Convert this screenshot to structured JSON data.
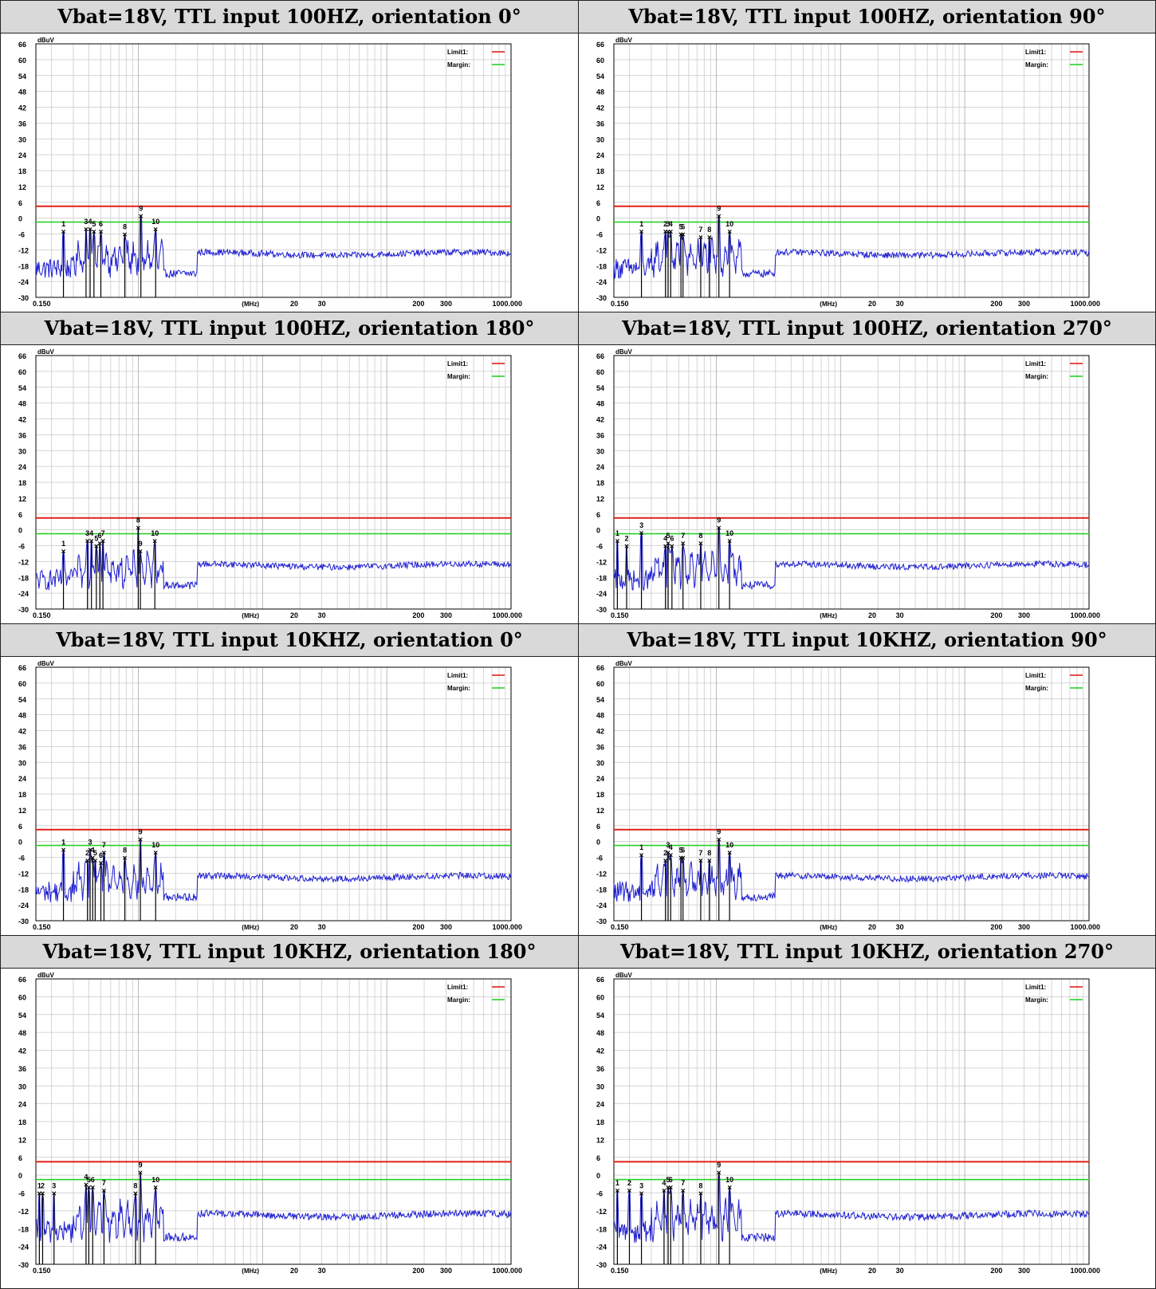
{
  "chart_data": [
    {
      "type": "line",
      "title": "Vbat=18V, TTL input 100HZ, orientation 0°",
      "ylabel": "dBuV",
      "xunit": "(MHz)",
      "xscale": "log",
      "xlim": [
        0.15,
        1000
      ],
      "ylim": [
        -30,
        66
      ],
      "yticks": [
        66,
        60,
        54,
        48,
        42,
        36,
        30,
        24,
        18,
        12,
        6,
        0,
        -6,
        -12,
        -18,
        -24,
        -30
      ],
      "xticklabels": [
        "0.150",
        "20",
        "30",
        "200",
        "300",
        "1000.000"
      ],
      "legend": [
        {
          "name": "Limit1:",
          "color": "#e0201b"
        },
        {
          "name": "Margin:",
          "color": "#2ad12a"
        }
      ],
      "limit1": 4.5,
      "margin": -1.5,
      "trace_color": "#1f1fd0",
      "markers": [
        {
          "id": "1",
          "x": 0.25,
          "y": -5
        },
        {
          "id": "3",
          "x": 0.38,
          "y": -4
        },
        {
          "id": "4",
          "x": 0.41,
          "y": -4
        },
        {
          "id": "5",
          "x": 0.44,
          "y": -5
        },
        {
          "id": "6",
          "x": 0.5,
          "y": -5
        },
        {
          "id": "8",
          "x": 0.78,
          "y": -6
        },
        {
          "id": "9",
          "x": 1.05,
          "y": 1
        },
        {
          "id": "10",
          "x": 1.38,
          "y": -4
        }
      ]
    },
    {
      "type": "line",
      "title": "Vbat=18V, TTL input 100HZ, orientation 90°",
      "ylabel": "dBuV",
      "xunit": "(MHz)",
      "xscale": "log",
      "xlim": [
        0.15,
        1000
      ],
      "ylim": [
        -30,
        66
      ],
      "yticks": [
        66,
        60,
        54,
        48,
        42,
        36,
        30,
        24,
        18,
        12,
        6,
        0,
        -6,
        -12,
        -18,
        -24,
        -30
      ],
      "xticklabels": [
        "0.150",
        "20",
        "30",
        "200",
        "300",
        "1000.000"
      ],
      "legend": [
        {
          "name": "Limit1:",
          "color": "#e0201b"
        },
        {
          "name": "Margin:",
          "color": "#2ad12a"
        }
      ],
      "limit1": 4.5,
      "margin": -1.5,
      "trace_color": "#1f1fd0",
      "markers": [
        {
          "id": "1",
          "x": 0.25,
          "y": -5
        },
        {
          "id": "2",
          "x": 0.39,
          "y": -5
        },
        {
          "id": "3",
          "x": 0.41,
          "y": -5
        },
        {
          "id": "4",
          "x": 0.43,
          "y": -5
        },
        {
          "id": "5",
          "x": 0.52,
          "y": -6
        },
        {
          "id": "6",
          "x": 0.54,
          "y": -6
        },
        {
          "id": "7",
          "x": 0.75,
          "y": -7
        },
        {
          "id": "8",
          "x": 0.88,
          "y": -7
        },
        {
          "id": "9",
          "x": 1.05,
          "y": 1
        },
        {
          "id": "10",
          "x": 1.28,
          "y": -5
        }
      ]
    },
    {
      "type": "line",
      "title": "Vbat=18V, TTL input 100HZ, orientation 180°",
      "ylabel": "dBuV",
      "xunit": "(MHz)",
      "xscale": "log",
      "xlim": [
        0.15,
        1000
      ],
      "ylim": [
        -30,
        66
      ],
      "yticks": [
        66,
        60,
        54,
        48,
        42,
        36,
        30,
        24,
        18,
        12,
        6,
        0,
        -6,
        -12,
        -18,
        -24,
        -30
      ],
      "xticklabels": [
        "0.150",
        "20",
        "30",
        "200",
        "300",
        "1000.000"
      ],
      "legend": [
        {
          "name": "Limit1:",
          "color": "#e0201b"
        },
        {
          "name": "Margin:",
          "color": "#2ad12a"
        }
      ],
      "limit1": 4.5,
      "margin": -1.5,
      "trace_color": "#1f1fd0",
      "markers": [
        {
          "id": "1",
          "x": 0.25,
          "y": -8
        },
        {
          "id": "3",
          "x": 0.39,
          "y": -4
        },
        {
          "id": "4",
          "x": 0.42,
          "y": -4
        },
        {
          "id": "5",
          "x": 0.46,
          "y": -6
        },
        {
          "id": "6",
          "x": 0.49,
          "y": -5
        },
        {
          "id": "7",
          "x": 0.52,
          "y": -4
        },
        {
          "id": "8",
          "x": 1.0,
          "y": 1
        },
        {
          "id": "9",
          "x": 1.04,
          "y": -8
        },
        {
          "id": "10",
          "x": 1.36,
          "y": -4
        }
      ]
    },
    {
      "type": "line",
      "title": "Vbat=18V, TTL input 100HZ, orientation 270°",
      "ylabel": "dBuV",
      "xunit": "(MHz)",
      "xscale": "log",
      "xlim": [
        0.15,
        1000
      ],
      "ylim": [
        -30,
        66
      ],
      "yticks": [
        66,
        60,
        54,
        48,
        42,
        36,
        30,
        24,
        18,
        12,
        6,
        0,
        -6,
        -12,
        -18,
        -24,
        -30
      ],
      "xticklabels": [
        "0.150",
        "20",
        "30",
        "200",
        "300",
        "1000.000"
      ],
      "legend": [
        {
          "name": "Limit1:",
          "color": "#e0201b"
        },
        {
          "name": "Margin:",
          "color": "#2ad12a"
        }
      ],
      "limit1": 4.5,
      "margin": -1.5,
      "trace_color": "#1f1fd0",
      "markers": [
        {
          "id": "1",
          "x": 0.16,
          "y": -4
        },
        {
          "id": "2",
          "x": 0.19,
          "y": -6
        },
        {
          "id": "3",
          "x": 0.25,
          "y": -1
        },
        {
          "id": "4",
          "x": 0.39,
          "y": -6
        },
        {
          "id": "5",
          "x": 0.41,
          "y": -5
        },
        {
          "id": "6",
          "x": 0.44,
          "y": -6
        },
        {
          "id": "7",
          "x": 0.54,
          "y": -5
        },
        {
          "id": "8",
          "x": 0.75,
          "y": -5
        },
        {
          "id": "9",
          "x": 1.05,
          "y": 1
        },
        {
          "id": "10",
          "x": 1.28,
          "y": -4
        }
      ]
    },
    {
      "type": "line",
      "title": "Vbat=18V, TTL input 10KHZ, orientation 0°",
      "ylabel": "dBuV",
      "xunit": "(MHz)",
      "xscale": "log",
      "xlim": [
        0.15,
        1000
      ],
      "ylim": [
        -30,
        66
      ],
      "yticks": [
        66,
        60,
        54,
        48,
        42,
        36,
        30,
        24,
        18,
        12,
        6,
        0,
        -6,
        -12,
        -18,
        -24,
        -30
      ],
      "xticklabels": [
        "0.150",
        "20",
        "30",
        "200",
        "300",
        "1000.000"
      ],
      "legend": [
        {
          "name": "Limit1:",
          "color": "#e0201b"
        },
        {
          "name": "Margin:",
          "color": "#2ad12a"
        }
      ],
      "limit1": 4.5,
      "margin": -1.5,
      "trace_color": "#1f1fd0",
      "markers": [
        {
          "id": "1",
          "x": 0.25,
          "y": -3
        },
        {
          "id": "2",
          "x": 0.39,
          "y": -7
        },
        {
          "id": "3",
          "x": 0.41,
          "y": -3
        },
        {
          "id": "4",
          "x": 0.43,
          "y": -6
        },
        {
          "id": "5",
          "x": 0.45,
          "y": -7
        },
        {
          "id": "6",
          "x": 0.5,
          "y": -8
        },
        {
          "id": "7",
          "x": 0.53,
          "y": -4
        },
        {
          "id": "8",
          "x": 0.78,
          "y": -6
        },
        {
          "id": "9",
          "x": 1.04,
          "y": 1
        },
        {
          "id": "10",
          "x": 1.38,
          "y": -4
        }
      ]
    },
    {
      "type": "line",
      "title": "Vbat=18V, TTL input 10KHZ, orientation 90°",
      "ylabel": "dBuV",
      "xunit": "(MHz)",
      "xscale": "log",
      "xlim": [
        0.15,
        1000
      ],
      "ylim": [
        -30,
        66
      ],
      "yticks": [
        66,
        60,
        54,
        48,
        42,
        36,
        30,
        24,
        18,
        12,
        6,
        0,
        -6,
        -12,
        -18,
        -24,
        -30
      ],
      "xticklabels": [
        "0.150",
        "20",
        "30",
        "200",
        "300",
        "1000.000"
      ],
      "legend": [
        {
          "name": "Limit1:",
          "color": "#e0201b"
        },
        {
          "name": "Margin:",
          "color": "#2ad12a"
        }
      ],
      "limit1": 4.5,
      "margin": -1.5,
      "trace_color": "#1f1fd0",
      "markers": [
        {
          "id": "1",
          "x": 0.25,
          "y": -5
        },
        {
          "id": "2",
          "x": 0.39,
          "y": -7
        },
        {
          "id": "3",
          "x": 0.41,
          "y": -4
        },
        {
          "id": "4",
          "x": 0.43,
          "y": -5
        },
        {
          "id": "5",
          "x": 0.52,
          "y": -6
        },
        {
          "id": "6",
          "x": 0.54,
          "y": -6
        },
        {
          "id": "7",
          "x": 0.75,
          "y": -7
        },
        {
          "id": "8",
          "x": 0.88,
          "y": -7
        },
        {
          "id": "9",
          "x": 1.05,
          "y": 1
        },
        {
          "id": "10",
          "x": 1.28,
          "y": -4
        }
      ]
    },
    {
      "type": "line",
      "title": "Vbat=18V, TTL input 10KHZ, orientation 180°",
      "ylabel": "dBuV",
      "xunit": "(MHz)",
      "xscale": "log",
      "xlim": [
        0.15,
        1000
      ],
      "ylim": [
        -30,
        66
      ],
      "yticks": [
        66,
        60,
        54,
        48,
        42,
        36,
        30,
        24,
        18,
        12,
        6,
        0,
        -6,
        -12,
        -18,
        -24,
        -30
      ],
      "xticklabels": [
        "0.150",
        "20",
        "30",
        "200",
        "300",
        "1000.000"
      ],
      "legend": [
        {
          "name": "Limit1:",
          "color": "#e0201b"
        },
        {
          "name": "Margin:",
          "color": "#2ad12a"
        }
      ],
      "limit1": 4.5,
      "margin": -1.5,
      "trace_color": "#1f1fd0",
      "markers": [
        {
          "id": "1",
          "x": 0.16,
          "y": -6
        },
        {
          "id": "2",
          "x": 0.17,
          "y": -6
        },
        {
          "id": "3",
          "x": 0.21,
          "y": -6
        },
        {
          "id": "4",
          "x": 0.38,
          "y": -3
        },
        {
          "id": "5",
          "x": 0.4,
          "y": -4
        },
        {
          "id": "6",
          "x": 0.43,
          "y": -4
        },
        {
          "id": "7",
          "x": 0.53,
          "y": -5
        },
        {
          "id": "8",
          "x": 0.95,
          "y": -6
        },
        {
          "id": "9",
          "x": 1.04,
          "y": 1
        },
        {
          "id": "10",
          "x": 1.38,
          "y": -4
        }
      ]
    },
    {
      "type": "line",
      "title": "Vbat=18V, TTL input 10KHZ, orientation 270°",
      "ylabel": "dBuV",
      "xunit": "(MHz)",
      "xscale": "log",
      "xlim": [
        0.15,
        1000
      ],
      "ylim": [
        -30,
        66
      ],
      "yticks": [
        66,
        60,
        54,
        48,
        42,
        36,
        30,
        24,
        18,
        12,
        6,
        0,
        -6,
        -12,
        -18,
        -24,
        -30
      ],
      "xticklabels": [
        "0.150",
        "20",
        "30",
        "200",
        "300",
        "1000.000"
      ],
      "legend": [
        {
          "name": "Limit1:",
          "color": "#e0201b"
        },
        {
          "name": "Margin:",
          "color": "#2ad12a"
        }
      ],
      "limit1": 4.5,
      "margin": -1.5,
      "trace_color": "#1f1fd0",
      "markers": [
        {
          "id": "1",
          "x": 0.16,
          "y": -5
        },
        {
          "id": "2",
          "x": 0.2,
          "y": -5
        },
        {
          "id": "3",
          "x": 0.25,
          "y": -6
        },
        {
          "id": "4",
          "x": 0.38,
          "y": -5
        },
        {
          "id": "5",
          "x": 0.41,
          "y": -4
        },
        {
          "id": "6",
          "x": 0.43,
          "y": -4
        },
        {
          "id": "7",
          "x": 0.54,
          "y": -5
        },
        {
          "id": "8",
          "x": 0.75,
          "y": -6
        },
        {
          "id": "9",
          "x": 1.05,
          "y": 1
        },
        {
          "id": "10",
          "x": 1.28,
          "y": -4
        }
      ]
    }
  ]
}
